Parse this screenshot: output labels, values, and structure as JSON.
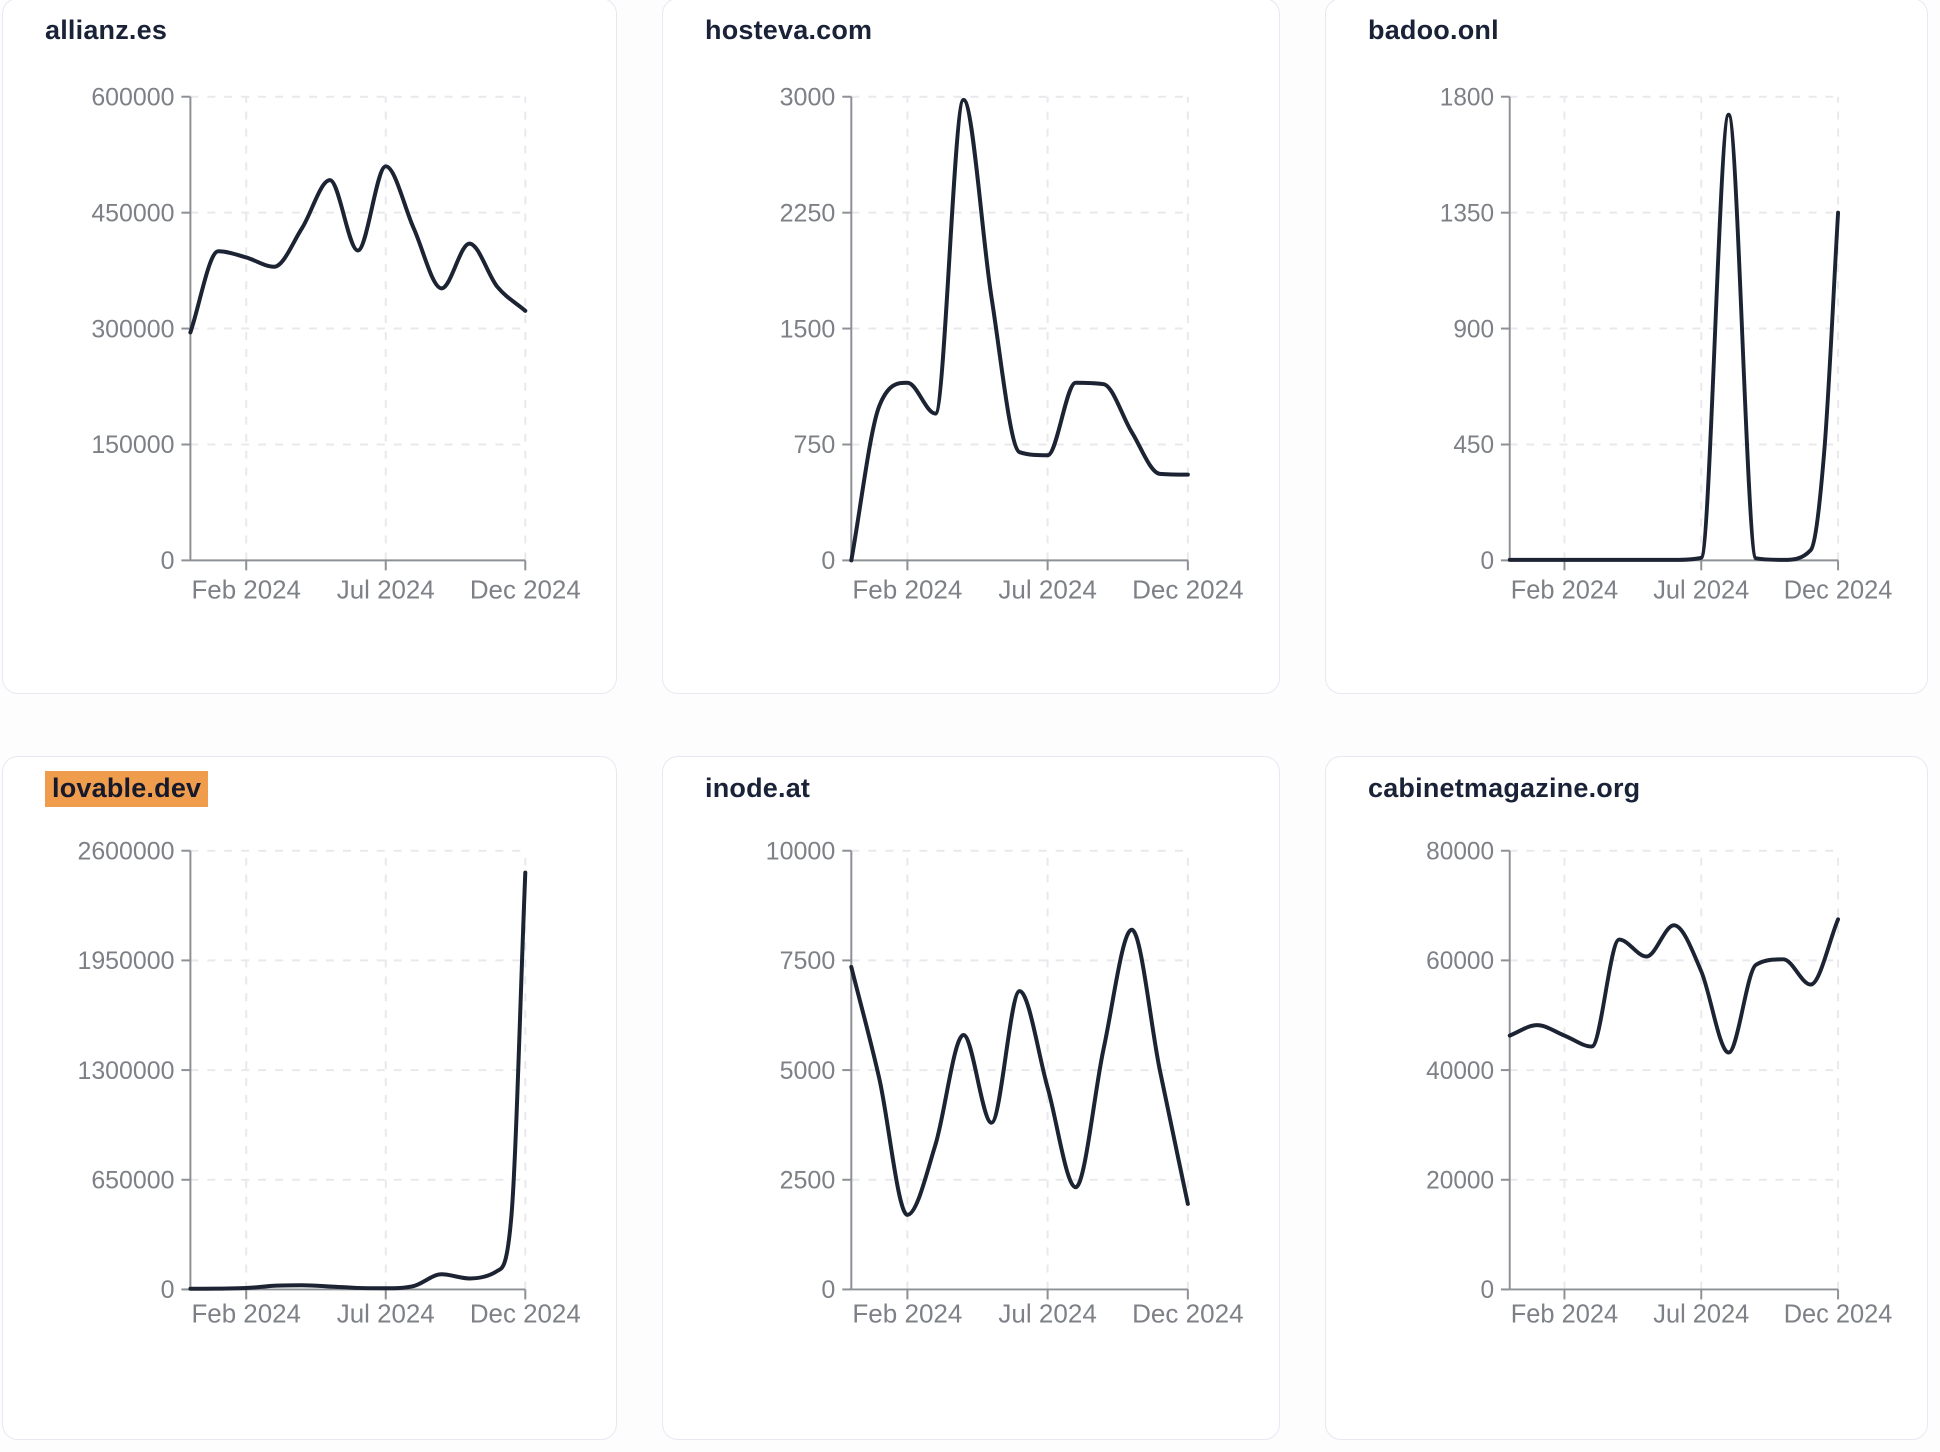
{
  "theme": {
    "page_bg": "#fdfdfe",
    "card_bg": "#ffffff",
    "card_border": "#e7e8f2",
    "title_color": "#1a2238",
    "highlight_bg": "#ef9c4d",
    "line_color": "#1c2333",
    "axis_color": "#8d9095",
    "tick_label_color": "#7d8086",
    "grid_color": "#e9e9ed"
  },
  "chart_data": [
    {
      "type": "line",
      "title": "allianz.es",
      "highlighted": false,
      "ylim": [
        0,
        600000
      ],
      "y_tick_values": [
        600000,
        450000,
        300000,
        150000,
        0
      ],
      "x_ticks": [
        {
          "label": "Feb 2024",
          "month": 2
        },
        {
          "label": "Jul 2024",
          "month": 7
        },
        {
          "label": "Dec 2024",
          "month": 12
        }
      ],
      "x": [
        0,
        1,
        2,
        3,
        4,
        5,
        6,
        7,
        8,
        9,
        10,
        11,
        12
      ],
      "values": [
        295000,
        400000,
        392000,
        380000,
        430000,
        492000,
        401000,
        510000,
        430000,
        352000,
        410000,
        354000,
        323000
      ],
      "grid": true,
      "legend": false
    },
    {
      "type": "line",
      "title": "hosteva.com",
      "highlighted": false,
      "ylim": [
        0,
        3000
      ],
      "y_tick_values": [
        3000,
        2250,
        1500,
        750,
        0
      ],
      "x_ticks": [
        {
          "label": "Feb 2024",
          "month": 2
        },
        {
          "label": "Jul 2024",
          "month": 7
        },
        {
          "label": "Dec 2024",
          "month": 12
        }
      ],
      "x": [
        0,
        1,
        2,
        3,
        4,
        5,
        6,
        7,
        8,
        9,
        10,
        11,
        12
      ],
      "values": [
        0,
        1000,
        1150,
        950,
        2980,
        1700,
        700,
        680,
        1150,
        1140,
        830,
        560,
        555
      ],
      "grid": true,
      "legend": false
    },
    {
      "type": "line",
      "title": "badoo.onl",
      "highlighted": false,
      "ylim": [
        0,
        1800
      ],
      "y_tick_values": [
        1800,
        1350,
        900,
        450,
        0
      ],
      "x_ticks": [
        {
          "label": "Feb 2024",
          "month": 2
        },
        {
          "label": "Jul 2024",
          "month": 7
        },
        {
          "label": "Dec 2024",
          "month": 12
        }
      ],
      "x": [
        0,
        1,
        2,
        3,
        4,
        5,
        6,
        7,
        8,
        9,
        10,
        11,
        11.5,
        12
      ],
      "values": [
        2,
        2,
        2,
        2,
        2,
        2,
        2,
        10,
        1730,
        8,
        2,
        40,
        430,
        1350
      ],
      "grid": true,
      "legend": false
    },
    {
      "type": "line",
      "title": "lovable.dev",
      "highlighted": true,
      "ylim": [
        0,
        2600000
      ],
      "y_tick_values": [
        2600000,
        1950000,
        1300000,
        650000,
        0
      ],
      "x_ticks": [
        {
          "label": "Feb 2024",
          "month": 2
        },
        {
          "label": "Jul 2024",
          "month": 7
        },
        {
          "label": "Dec 2024",
          "month": 12
        }
      ],
      "x": [
        0,
        1,
        2,
        3,
        4,
        5,
        6,
        7,
        8,
        9,
        10,
        11,
        11.5,
        12
      ],
      "values": [
        4000,
        5000,
        8000,
        22000,
        25000,
        18000,
        9000,
        7000,
        20000,
        90000,
        65000,
        110000,
        430000,
        2470000
      ],
      "grid": true,
      "legend": false
    },
    {
      "type": "line",
      "title": "inode.at",
      "highlighted": false,
      "ylim": [
        0,
        10000
      ],
      "y_tick_values": [
        10000,
        7500,
        5000,
        2500,
        0
      ],
      "x_ticks": [
        {
          "label": "Feb 2024",
          "month": 2
        },
        {
          "label": "Jul 2024",
          "month": 7
        },
        {
          "label": "Dec 2024",
          "month": 12
        }
      ],
      "x": [
        0,
        1,
        2,
        3,
        4,
        5,
        6,
        7,
        8,
        9,
        10,
        11,
        12
      ],
      "values": [
        7350,
        4800,
        1700,
        3300,
        5800,
        3800,
        6800,
        4600,
        2330,
        5500,
        8200,
        5000,
        1950
      ],
      "grid": true,
      "legend": false
    },
    {
      "type": "line",
      "title": "cabinetmagazine.org",
      "highlighted": false,
      "ylim": [
        0,
        80000
      ],
      "y_tick_values": [
        80000,
        60000,
        40000,
        20000,
        0
      ],
      "x_ticks": [
        {
          "label": "Feb 2024",
          "month": 2
        },
        {
          "label": "Jul 2024",
          "month": 7
        },
        {
          "label": "Dec 2024",
          "month": 12
        }
      ],
      "x": [
        0,
        1,
        2,
        3,
        4,
        5,
        6,
        7,
        8,
        9,
        10,
        11,
        12
      ],
      "values": [
        46300,
        48200,
        46300,
        44300,
        63800,
        60700,
        66400,
        58000,
        43200,
        59200,
        60200,
        55600,
        67500
      ],
      "grid": true,
      "legend": false
    }
  ]
}
